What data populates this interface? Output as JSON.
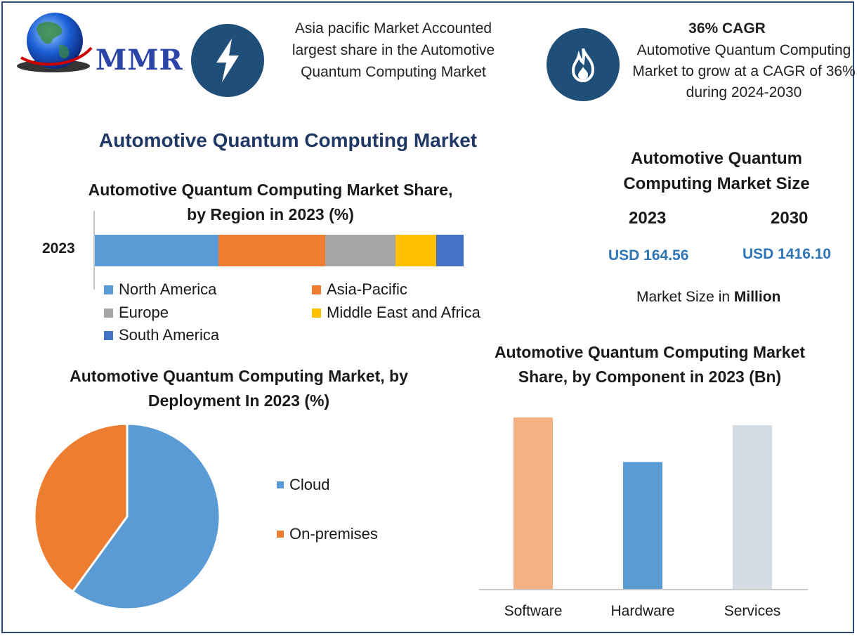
{
  "brand": {
    "logo_text": "MMR"
  },
  "header": {
    "left_text": "Asia pacific Market Accounted largest share in the Automotive Quantum Computing Market",
    "right_heading": "36% CAGR",
    "right_text": "Automotive Quantum Computing Market to grow at a CAGR of 36% during 2024-2030"
  },
  "main_title": "Automotive Quantum Computing Market",
  "market_size": {
    "title": "Automotive Quantum Computing Market Size",
    "year_a": "2023",
    "year_b": "2030",
    "value_a": "USD 164.56",
    "value_b": "USD 1416.10",
    "note_prefix": "Market Size in",
    "note_unit": "Million"
  },
  "colors": {
    "north_america": "#5b9bd5",
    "asia_pacific": "#ed7d31",
    "europe": "#a5a5a5",
    "mea": "#ffc000",
    "south_america": "#4472c4",
    "software": "#f4b183",
    "hardware": "#5b9bd5",
    "services": "#d6dce4",
    "icon_bg": "#1f4e79",
    "title_blue": "#1f3864"
  },
  "chart_data": [
    {
      "type": "bar",
      "orientation": "horizontal-stacked",
      "title": "Automotive Quantum Computing Market Share, by Region in 2023 (%)",
      "categories": [
        "2023"
      ],
      "series": [
        {
          "name": "North America",
          "values": [
            33.5
          ]
        },
        {
          "name": "Asia-Pacific",
          "values": [
            29
          ]
        },
        {
          "name": "Europe",
          "values": [
            19
          ]
        },
        {
          "name": "Middle East and Africa",
          "values": [
            11
          ]
        },
        {
          "name": "South America",
          "values": [
            7.5
          ]
        }
      ],
      "legend": "bottom"
    },
    {
      "type": "pie",
      "title": "Automotive Quantum Computing Market, by Deployment In 2023 (%)",
      "labels": [
        "Cloud",
        "On-premises"
      ],
      "values": [
        60,
        40
      ],
      "legend": "right"
    },
    {
      "type": "bar",
      "title": "Automotive Quantum Computing Market Share, by Component in 2023 (Bn)",
      "categories": [
        "Software",
        "Hardware",
        "Services"
      ],
      "values": [
        100,
        74,
        95.5
      ],
      "ylim": [
        0,
        100
      ]
    }
  ]
}
